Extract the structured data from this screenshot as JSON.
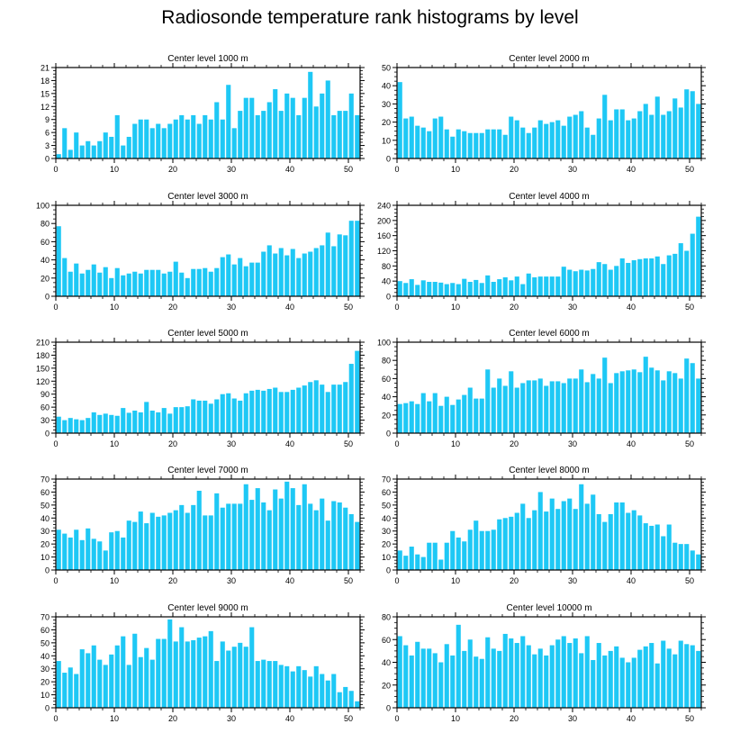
{
  "figure_title": "Radiosonde temperature rank histograms by level",
  "colors": {
    "bar": "#1EC8F5",
    "axis": "#000000",
    "background": "#ffffff"
  },
  "chart_data": [
    {
      "type": "bar",
      "title": "Center level 1000 m",
      "xlim": [
        0,
        52
      ],
      "x_ticks": [
        0,
        10,
        20,
        30,
        40,
        50
      ],
      "ylim": [
        0,
        21
      ],
      "y_ticks": [
        0,
        3,
        6,
        9,
        12,
        15,
        18,
        21
      ],
      "values": [
        1,
        7,
        2,
        6,
        3,
        4,
        3,
        4,
        6,
        5,
        10,
        3,
        5,
        8,
        9,
        9,
        7,
        8,
        7,
        8,
        9,
        10,
        9,
        10,
        8,
        10,
        9,
        13,
        9,
        17,
        7,
        11,
        14,
        14,
        10,
        11,
        13,
        16,
        11,
        15,
        14,
        10,
        14,
        20,
        12,
        15,
        18,
        10,
        11,
        11,
        15,
        10
      ]
    },
    {
      "type": "bar",
      "title": "Center level 2000 m",
      "xlim": [
        0,
        52
      ],
      "x_ticks": [
        0,
        10,
        20,
        30,
        40,
        50
      ],
      "ylim": [
        0,
        50
      ],
      "y_ticks": [
        0,
        10,
        20,
        30,
        40,
        50
      ],
      "values": [
        42,
        22,
        23,
        18,
        17,
        15,
        22,
        23,
        16,
        12,
        16,
        15,
        14,
        14,
        14,
        16,
        16,
        16,
        13,
        23,
        21,
        17,
        14,
        17,
        21,
        19,
        20,
        21,
        18,
        23,
        24,
        26,
        17,
        13,
        22,
        35,
        21,
        27,
        27,
        21,
        22,
        26,
        30,
        24,
        34,
        24,
        26,
        33,
        28,
        38,
        37,
        30
      ]
    },
    {
      "type": "bar",
      "title": "Center level 3000 m",
      "xlim": [
        0,
        52
      ],
      "x_ticks": [
        0,
        10,
        20,
        30,
        40,
        50
      ],
      "ylim": [
        0,
        100
      ],
      "y_ticks": [
        0,
        20,
        40,
        60,
        80,
        100
      ],
      "values": [
        77,
        42,
        27,
        36,
        25,
        29,
        35,
        26,
        32,
        20,
        31,
        23,
        25,
        27,
        25,
        29,
        29,
        29,
        25,
        27,
        38,
        26,
        20,
        30,
        30,
        31,
        27,
        31,
        43,
        46,
        35,
        42,
        33,
        37,
        37,
        49,
        56,
        47,
        53,
        45,
        52,
        42,
        47,
        49,
        53,
        56,
        70,
        55,
        68,
        67,
        83,
        83
      ]
    },
    {
      "type": "bar",
      "title": "Center level 4000 m",
      "xlim": [
        0,
        52
      ],
      "x_ticks": [
        0,
        10,
        20,
        30,
        40,
        50
      ],
      "ylim": [
        0,
        240
      ],
      "y_ticks": [
        0,
        40,
        80,
        120,
        160,
        200,
        240
      ],
      "values": [
        40,
        35,
        45,
        30,
        42,
        38,
        38,
        36,
        32,
        35,
        32,
        46,
        38,
        43,
        35,
        55,
        38,
        45,
        50,
        42,
        52,
        32,
        60,
        50,
        52,
        52,
        52,
        52,
        78,
        70,
        66,
        70,
        68,
        72,
        90,
        85,
        70,
        80,
        100,
        88,
        95,
        98,
        100,
        100,
        105,
        85,
        108,
        112,
        140,
        120,
        165,
        210
      ]
    },
    {
      "type": "bar",
      "title": "Center level 5000 m",
      "xlim": [
        0,
        52
      ],
      "x_ticks": [
        0,
        10,
        20,
        30,
        40,
        50
      ],
      "ylim": [
        0,
        210
      ],
      "y_ticks": [
        0,
        30,
        60,
        90,
        120,
        150,
        180,
        210
      ],
      "values": [
        38,
        30,
        35,
        32,
        30,
        35,
        48,
        42,
        45,
        42,
        40,
        58,
        47,
        52,
        48,
        72,
        52,
        48,
        58,
        45,
        60,
        60,
        62,
        78,
        75,
        75,
        68,
        78,
        90,
        92,
        80,
        75,
        92,
        98,
        100,
        98,
        102,
        105,
        95,
        95,
        100,
        105,
        110,
        118,
        122,
        112,
        95,
        112,
        112,
        118,
        160,
        190
      ]
    },
    {
      "type": "bar",
      "title": "Center level 6000 m",
      "xlim": [
        0,
        52
      ],
      "x_ticks": [
        0,
        10,
        20,
        30,
        40,
        50
      ],
      "ylim": [
        0,
        100
      ],
      "y_ticks": [
        0,
        20,
        40,
        60,
        80,
        100
      ],
      "values": [
        32,
        33,
        35,
        32,
        44,
        35,
        44,
        30,
        40,
        31,
        37,
        42,
        50,
        38,
        38,
        70,
        50,
        60,
        52,
        68,
        50,
        55,
        58,
        58,
        60,
        52,
        57,
        57,
        55,
        60,
        60,
        70,
        56,
        65,
        60,
        83,
        55,
        66,
        68,
        69,
        70,
        67,
        84,
        72,
        69,
        58,
        68,
        66,
        60,
        82,
        77,
        60
      ]
    },
    {
      "type": "bar",
      "title": "Center level 7000 m",
      "xlim": [
        0,
        52
      ],
      "x_ticks": [
        0,
        10,
        20,
        30,
        40,
        50
      ],
      "ylim": [
        0,
        70
      ],
      "y_ticks": [
        0,
        10,
        20,
        30,
        40,
        50,
        60,
        70
      ],
      "values": [
        31,
        28,
        25,
        31,
        23,
        32,
        24,
        22,
        15,
        29,
        30,
        25,
        38,
        37,
        45,
        36,
        44,
        41,
        42,
        44,
        46,
        50,
        44,
        50,
        61,
        42,
        42,
        59,
        48,
        51,
        51,
        51,
        66,
        54,
        63,
        52,
        46,
        62,
        55,
        68,
        63,
        50,
        66,
        51,
        46,
        55,
        38,
        53,
        52,
        48,
        43,
        37
      ]
    },
    {
      "type": "bar",
      "title": "Center level 8000 m",
      "xlim": [
        0,
        52
      ],
      "x_ticks": [
        0,
        10,
        20,
        30,
        40,
        50
      ],
      "ylim": [
        0,
        70
      ],
      "y_ticks": [
        0,
        10,
        20,
        30,
        40,
        50,
        60,
        70
      ],
      "values": [
        15,
        11,
        18,
        12,
        10,
        21,
        21,
        8,
        21,
        30,
        25,
        22,
        31,
        38,
        30,
        30,
        31,
        39,
        40,
        41,
        44,
        51,
        40,
        46,
        60,
        45,
        55,
        47,
        53,
        55,
        47,
        66,
        51,
        58,
        43,
        37,
        43,
        52,
        52,
        44,
        46,
        42,
        36,
        34,
        35,
        26,
        35,
        21,
        20,
        20,
        15,
        12
      ]
    },
    {
      "type": "bar",
      "title": "Center level 9000 m",
      "xlim": [
        0,
        52
      ],
      "x_ticks": [
        0,
        10,
        20,
        30,
        40,
        50
      ],
      "ylim": [
        0,
        70
      ],
      "y_ticks": [
        0,
        10,
        20,
        30,
        40,
        50,
        60,
        70
      ],
      "values": [
        36,
        27,
        31,
        26,
        45,
        42,
        48,
        37,
        33,
        41,
        48,
        55,
        33,
        57,
        39,
        46,
        37,
        53,
        53,
        68,
        51,
        62,
        51,
        52,
        54,
        55,
        59,
        36,
        51,
        44,
        47,
        50,
        47,
        62,
        36,
        37,
        36,
        36,
        33,
        32,
        28,
        32,
        29,
        24,
        32,
        26,
        21,
        26,
        12,
        16,
        13,
        5
      ]
    },
    {
      "type": "bar",
      "title": "Center level 10000 m",
      "xlim": [
        0,
        52
      ],
      "x_ticks": [
        0,
        10,
        20,
        30,
        40,
        50
      ],
      "ylim": [
        0,
        80
      ],
      "y_ticks": [
        0,
        20,
        40,
        60,
        80
      ],
      "values": [
        63,
        55,
        46,
        58,
        52,
        52,
        48,
        40,
        56,
        46,
        73,
        50,
        60,
        45,
        43,
        62,
        52,
        50,
        65,
        61,
        57,
        63,
        55,
        47,
        52,
        46,
        55,
        60,
        63,
        57,
        61,
        48,
        63,
        42,
        57,
        46,
        50,
        54,
        44,
        40,
        44,
        51,
        54,
        57,
        39,
        59,
        52,
        47,
        59,
        56,
        55,
        50
      ]
    }
  ]
}
